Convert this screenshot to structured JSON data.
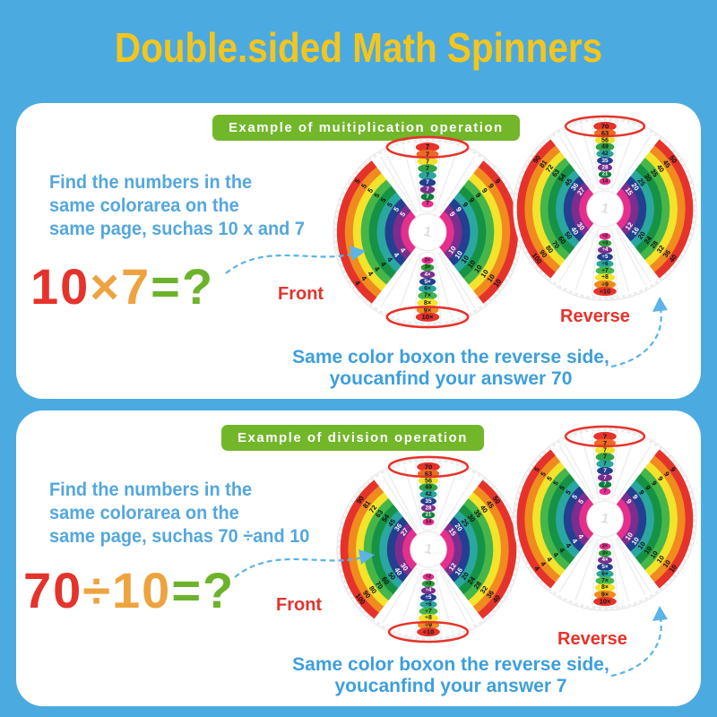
{
  "title": "Double.sided Math Spinners",
  "theme": {
    "background": "#4babe1",
    "title_color": "#f5c51d",
    "banner_green": "#72b62a",
    "blue_text": "#54a7dd",
    "red": "#e5332b",
    "orange": "#eda33f",
    "green": "#6cb32b",
    "arrow_blue": "#5cb3e6"
  },
  "spinner_palette": {
    "ring_colors": [
      "#e5332b",
      "#f08b1f",
      "#f3e32b",
      "#45b649",
      "#169245",
      "#2aa7a0",
      "#233f90",
      "#7b2e8d",
      "#e62f8d"
    ],
    "oval_colors_top": [
      "#e5332b",
      "#ee6a24",
      "#f0df2a",
      "#30a348",
      "#2aa7a0",
      "#233f90",
      "#7b2e8d",
      "#0e7e3c",
      "#e62f8d"
    ],
    "oval_colors_bottom": [
      "#e62f8d",
      "#2f9e3f",
      "#7b2e8d",
      "#233f90",
      "#2aa7a0",
      "#45b649",
      "#f3e32b",
      "#f08b1f",
      "#e5332b"
    ],
    "white_text_backgrounds": [
      "#233f90",
      "#7b2e8d",
      "#0e7e3c"
    ],
    "hub_label": "1"
  },
  "spinner_bases": {
    "A": {
      "top_ovals": [
        "7",
        "7",
        "7",
        "7",
        "7",
        "7",
        "7",
        "7",
        "7"
      ],
      "bottom_ovals": [
        "2×",
        "3×",
        "4×",
        "5×",
        "6×",
        "7×",
        "8×",
        "9×",
        "10×"
      ],
      "ring_numbers": {
        "left_top": [
          "5",
          "5",
          "5",
          "5",
          "5",
          "5",
          "5",
          "5"
        ],
        "left_bottom": [
          "4",
          "4",
          "4",
          "4",
          "4",
          "4",
          "4",
          "4"
        ],
        "right_top": [
          "9",
          "9",
          "9",
          "9",
          "9",
          "9",
          "9",
          "9"
        ],
        "right_bottom": [
          "10",
          "10",
          "10",
          "10",
          "10",
          "10",
          "10",
          "10"
        ]
      }
    },
    "B": {
      "top_ovals": [
        "70",
        "63",
        "56",
        "49",
        "42",
        "35",
        "28",
        "21",
        "14"
      ],
      "bottom_ovals": [
        "÷2",
        "÷3",
        "÷4",
        "÷5",
        "÷6",
        "÷7",
        "÷8",
        "÷9",
        "÷10"
      ],
      "ring_numbers": {
        "left_top": [
          "90",
          "81",
          "72",
          "63",
          "54",
          "45",
          "36",
          "27"
        ],
        "left_bottom": [
          "100",
          "90",
          "80",
          "70",
          "60",
          "50",
          "40",
          "30"
        ],
        "right_top": [
          "50",
          "45",
          "40",
          "35",
          "30",
          "25",
          "20",
          "15"
        ],
        "right_bottom": [
          "40",
          "36",
          "32",
          "28",
          "24",
          "20",
          "16",
          "12"
        ]
      }
    }
  },
  "panels": [
    {
      "banner": "Example of muitiplication operation",
      "description_lines": [
        "Find the numbers in the",
        "same colorarea on the",
        "same page, suchas 10 x and 7"
      ],
      "equation": {
        "operand1": "10",
        "operator": "×",
        "operand2": "7",
        "equals": "=",
        "question": "?"
      },
      "front_label": "Front",
      "reverse_label": "Reverse",
      "answer_lines": [
        "Same color boxon the reverse side,",
        "youcanfind your answer 70"
      ],
      "front_spinner": {
        "base": "A",
        "circle_top": true,
        "circle_bottom": true
      },
      "reverse_spinner": {
        "base": "B",
        "circle_top": true,
        "circle_bottom": false
      }
    },
    {
      "banner": "Example of division operation",
      "description_lines": [
        "Find the numbers in the",
        "same colorarea on the",
        "same page, suchas 70 ÷and 10"
      ],
      "equation": {
        "operand1": "70",
        "operator": "÷",
        "operand2": "10",
        "equals": "=",
        "question": "?"
      },
      "front_label": "Front",
      "reverse_label": "Reverse",
      "answer_lines": [
        "Same color boxon the reverse side,",
        "youcanfind your answer 7"
      ],
      "front_spinner": {
        "base": "B",
        "circle_top": true,
        "circle_bottom": true
      },
      "reverse_spinner": {
        "base": "A",
        "circle_top": true,
        "circle_bottom": false
      }
    }
  ]
}
